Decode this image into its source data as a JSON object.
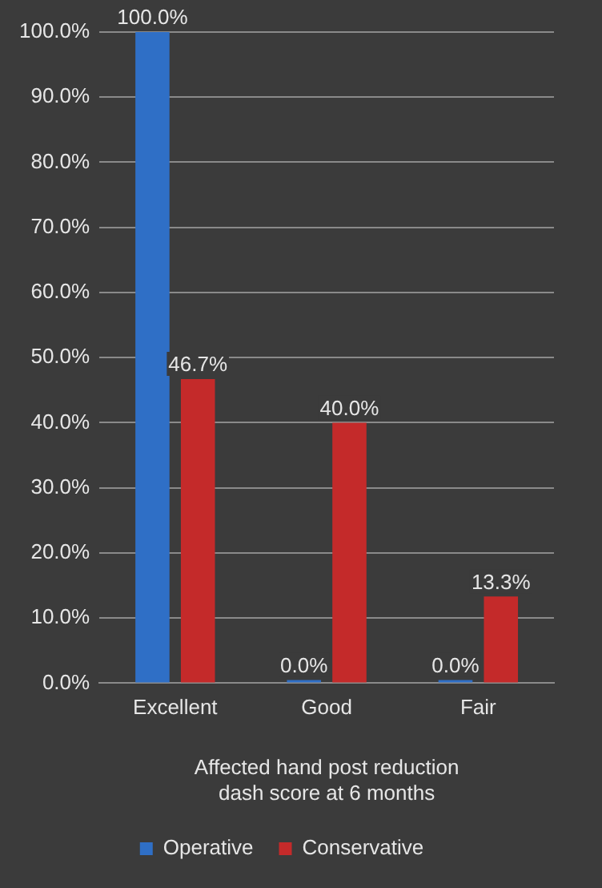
{
  "chart_data": {
    "type": "bar",
    "xlabel": "Affected hand post reduction dash score at 6 months",
    "categories": [
      "Excellent",
      "Good",
      "Fair"
    ],
    "series": [
      {
        "name": "Operative",
        "color": "#2f6fc6",
        "values": [
          100,
          0,
          0
        ],
        "value_labels": [
          "100.0%",
          "0.0%",
          "0.0%"
        ]
      },
      {
        "name": "Conservative",
        "color": "#c42a2a",
        "values": [
          46.7,
          40,
          13.3
        ],
        "value_labels": [
          "46.7%",
          "40.0%",
          "13.3%"
        ]
      }
    ],
    "ylim": [
      0,
      100
    ],
    "yticks": [
      {
        "value": 0,
        "label": "0.0%"
      },
      {
        "value": 10,
        "label": "10.0%"
      },
      {
        "value": 20,
        "label": "20.0%"
      },
      {
        "value": 30,
        "label": "30.0%"
      },
      {
        "value": 40,
        "label": "40.0%"
      },
      {
        "value": 50,
        "label": "50.0%"
      },
      {
        "value": 60,
        "label": "60.0%"
      },
      {
        "value": 70,
        "label": "70.0%"
      },
      {
        "value": 80,
        "label": "80.0%"
      },
      {
        "value": 90,
        "label": "90.0%"
      },
      {
        "value": 100,
        "label": "100.0%"
      }
    ],
    "grid": "y",
    "legend": "bottom"
  }
}
